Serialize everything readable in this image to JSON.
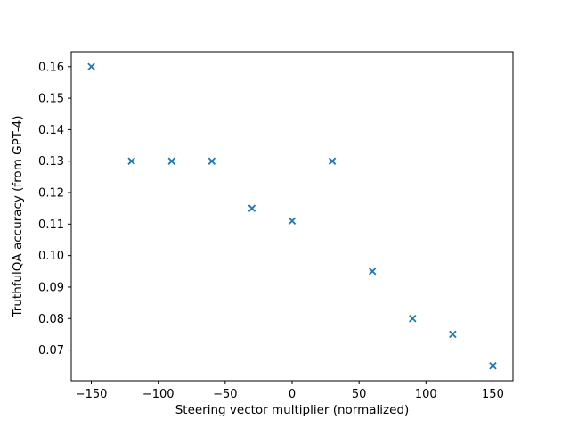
{
  "figure": {
    "background": "#ffffff",
    "axes_edge_color": "#000000"
  },
  "chart_data": {
    "type": "scatter",
    "title": "",
    "xlabel": "Steering vector multiplier (normalized)",
    "ylabel": "TruthfulQA accuracy (from GPT-4)",
    "marker": "x",
    "marker_color": "#1f77b4",
    "grid": false,
    "legend": null,
    "x": [
      -150,
      -120,
      -90,
      -60,
      -30,
      0,
      30,
      60,
      90,
      120,
      150
    ],
    "y": [
      0.16,
      0.13,
      0.13,
      0.13,
      0.115,
      0.111,
      0.13,
      0.095,
      0.08,
      0.075,
      0.065
    ],
    "xlim": [
      -165,
      165
    ],
    "ylim": [
      0.06025,
      0.16475
    ],
    "xticks": [
      -150,
      -100,
      -50,
      0,
      50,
      100,
      150
    ],
    "yticks": [
      0.07,
      0.08,
      0.09,
      0.1,
      0.11,
      0.12,
      0.13,
      0.14,
      0.15,
      0.16
    ]
  }
}
